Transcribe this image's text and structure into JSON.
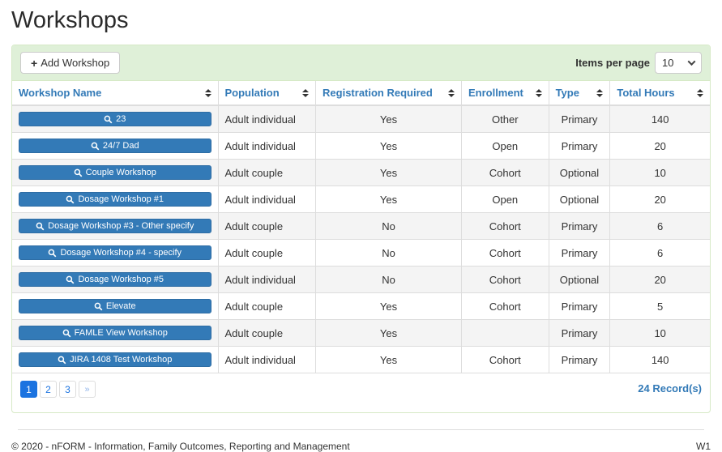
{
  "page": {
    "title": "Workshops"
  },
  "theme": {
    "accent_blue": "#337ab7",
    "workshop_button_blue": "#337ab7",
    "active_page_blue": "#1b73e0",
    "toolbar_green": "#dff0d8",
    "panel_border_green": "#d6e9c6",
    "stripe_gray": "#f4f4f4"
  },
  "icons": {
    "add_button": "plus-icon",
    "workshop_button": "search-icon",
    "items_per_page": "chevron-down-icon",
    "column_header": "sort-icon"
  },
  "toolbar": {
    "add_button_label": "Add Workshop",
    "items_per_page_label": "Items per page",
    "items_per_page_value": "10"
  },
  "table": {
    "columns": [
      {
        "label": "Workshop Name"
      },
      {
        "label": "Population"
      },
      {
        "label": "Registration Required"
      },
      {
        "label": "Enrollment"
      },
      {
        "label": "Type"
      },
      {
        "label": "Total Hours"
      }
    ],
    "rows": [
      {
        "name": "23",
        "population": "Adult individual",
        "registration_required": "Yes",
        "enrollment": "Other",
        "type": "Primary",
        "total_hours": "140"
      },
      {
        "name": "24/7 Dad",
        "population": "Adult individual",
        "registration_required": "Yes",
        "enrollment": "Open",
        "type": "Primary",
        "total_hours": "20"
      },
      {
        "name": "Couple Workshop",
        "population": "Adult couple",
        "registration_required": "Yes",
        "enrollment": "Cohort",
        "type": "Optional",
        "total_hours": "10"
      },
      {
        "name": "Dosage Workshop #1",
        "population": "Adult individual",
        "registration_required": "Yes",
        "enrollment": "Open",
        "type": "Optional",
        "total_hours": "20"
      },
      {
        "name": "Dosage Workshop #3 - Other specify",
        "population": "Adult couple",
        "registration_required": "No",
        "enrollment": "Cohort",
        "type": "Primary",
        "total_hours": "6"
      },
      {
        "name": "Dosage Workshop #4 - specify",
        "population": "Adult couple",
        "registration_required": "No",
        "enrollment": "Cohort",
        "type": "Primary",
        "total_hours": "6"
      },
      {
        "name": "Dosage Workshop #5",
        "population": "Adult individual",
        "registration_required": "No",
        "enrollment": "Cohort",
        "type": "Optional",
        "total_hours": "20"
      },
      {
        "name": "Elevate",
        "population": "Adult couple",
        "registration_required": "Yes",
        "enrollment": "Cohort",
        "type": "Primary",
        "total_hours": "5"
      },
      {
        "name": "FAMLE View Workshop",
        "population": "Adult couple",
        "registration_required": "Yes",
        "enrollment": "",
        "type": "Primary",
        "total_hours": "10"
      },
      {
        "name": "JIRA 1408 Test Workshop",
        "population": "Adult individual",
        "registration_required": "Yes",
        "enrollment": "Cohort",
        "type": "Primary",
        "total_hours": "140"
      }
    ]
  },
  "pagination": {
    "pages": [
      "1",
      "2",
      "3"
    ],
    "active_page": "1",
    "next_label": "»",
    "record_count": "24 Record(s)"
  },
  "footer": {
    "copyright": "© 2020 - nFORM - Information, Family Outcomes, Reporting and Management",
    "version": "W1"
  }
}
